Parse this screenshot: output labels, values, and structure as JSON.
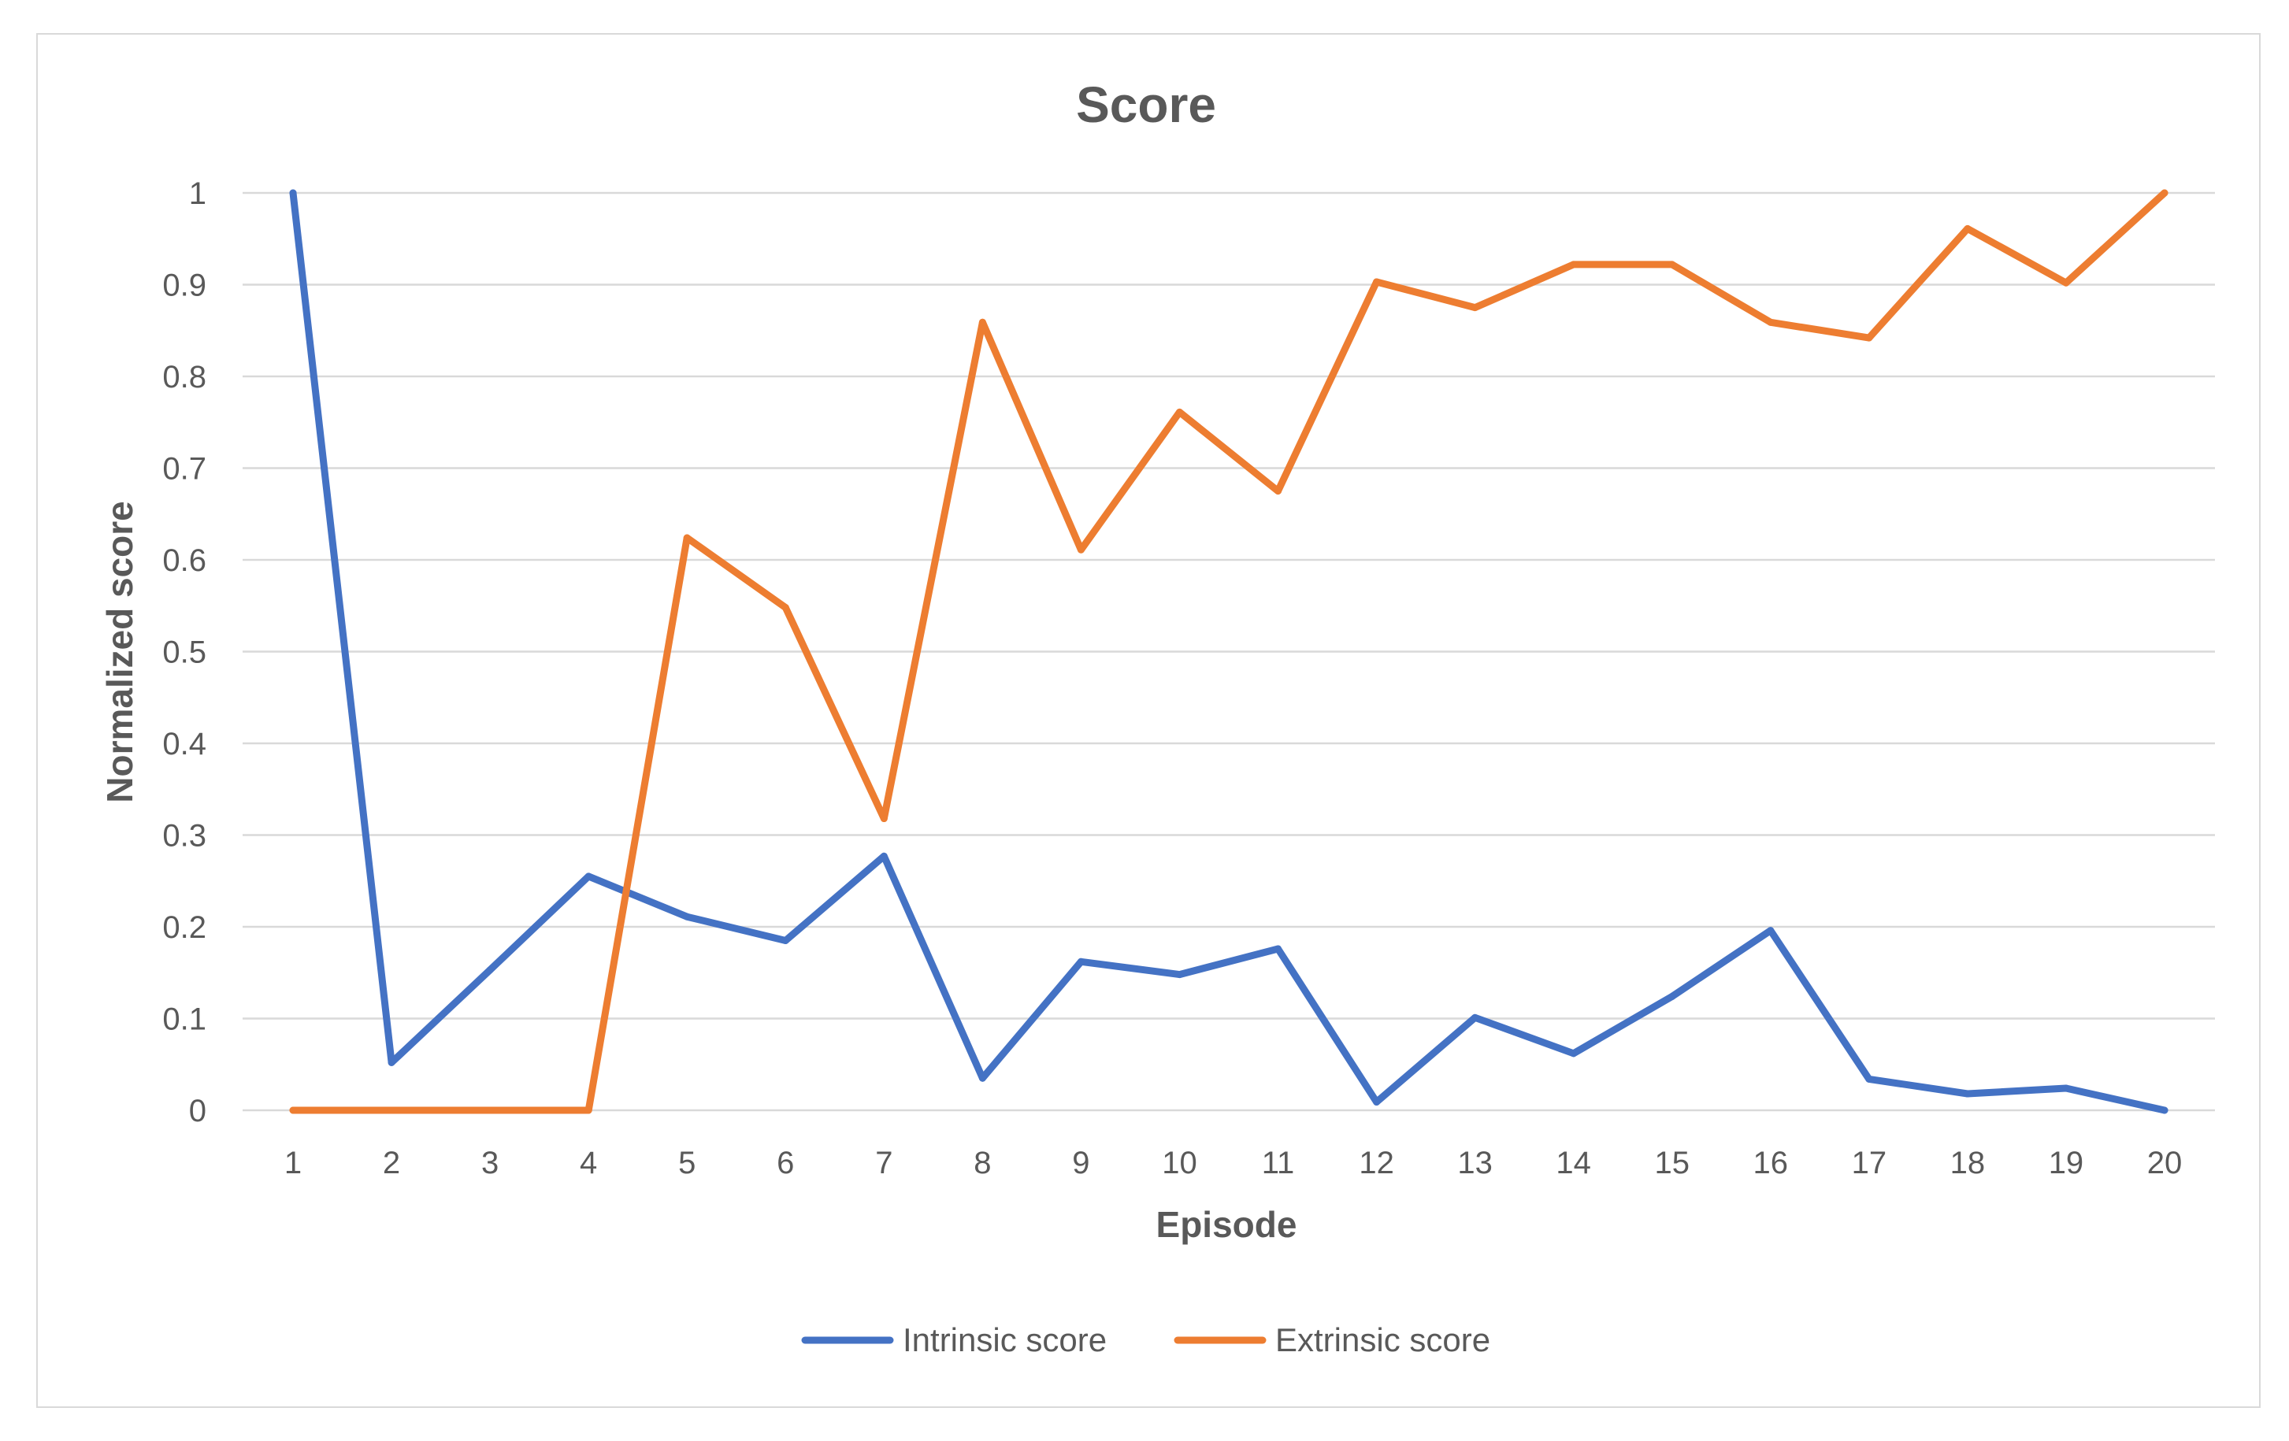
{
  "chart_data": {
    "type": "line",
    "title": "Score",
    "xlabel": "Episode",
    "ylabel": "Normalized score",
    "categories": [
      "1",
      "2",
      "3",
      "4",
      "5",
      "6",
      "7",
      "8",
      "9",
      "10",
      "11",
      "12",
      "13",
      "14",
      "15",
      "16",
      "17",
      "18",
      "19",
      "20"
    ],
    "ylim": [
      0,
      1
    ],
    "yticks": [
      "0",
      "0.1",
      "0.2",
      "0.3",
      "0.4",
      "0.5",
      "0.6",
      "0.7",
      "0.8",
      "0.9",
      "1"
    ],
    "grid": true,
    "legend_position": "bottom",
    "series": [
      {
        "name": "Intrinsic score",
        "color": "#4472c4",
        "values": [
          1.0,
          0.052,
          0.153,
          0.255,
          0.211,
          0.185,
          0.277,
          0.035,
          0.162,
          0.148,
          0.176,
          0.009,
          0.101,
          0.062,
          0.124,
          0.196,
          0.034,
          0.018,
          0.024,
          0.0
        ]
      },
      {
        "name": "Extrinsic score",
        "color": "#ed7d31",
        "values": [
          0.0,
          0.0,
          0.0,
          0.0,
          0.624,
          0.548,
          0.318,
          0.859,
          0.611,
          0.761,
          0.675,
          0.903,
          0.875,
          0.922,
          0.922,
          0.859,
          0.842,
          0.961,
          0.902,
          1.0
        ]
      }
    ]
  }
}
